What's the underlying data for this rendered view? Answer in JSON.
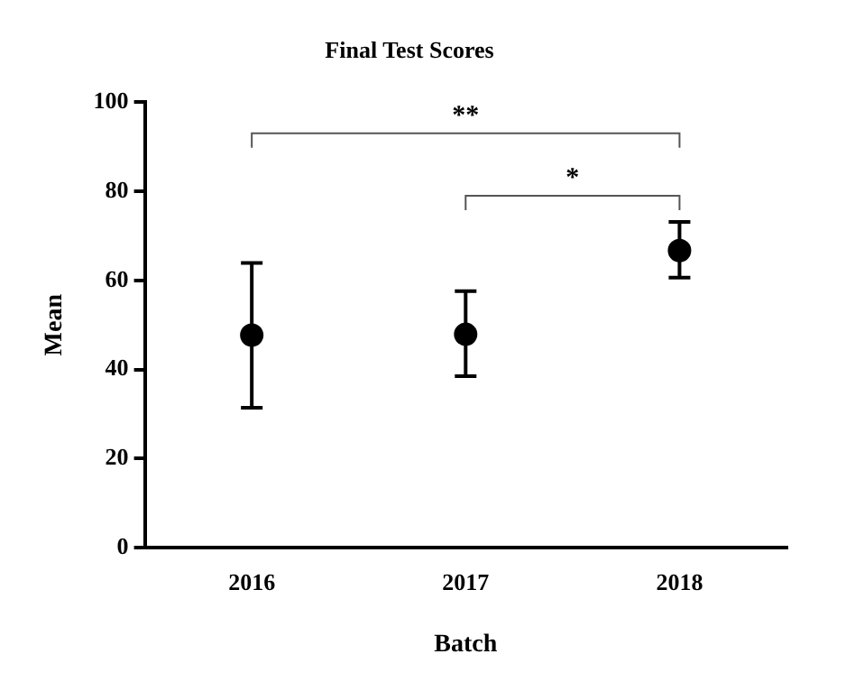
{
  "chart_data": {
    "type": "scatter",
    "title": "Final Test Scores",
    "xlabel": "Batch",
    "ylabel": "Mean",
    "categories": [
      "2016",
      "2017",
      "2018"
    ],
    "values": [
      47.7,
      47.9,
      66.7
    ],
    "errors": [
      [
        31.4,
        63.9
      ],
      [
        38.5,
        57.6
      ],
      [
        60.6,
        73.1
      ]
    ],
    "color": "#000000",
    "marker": "circle",
    "ylim": [
      0,
      100
    ],
    "yticks": [
      0,
      20,
      40,
      60,
      80,
      100
    ],
    "annotations": [
      "**",
      "*"
    ]
  }
}
